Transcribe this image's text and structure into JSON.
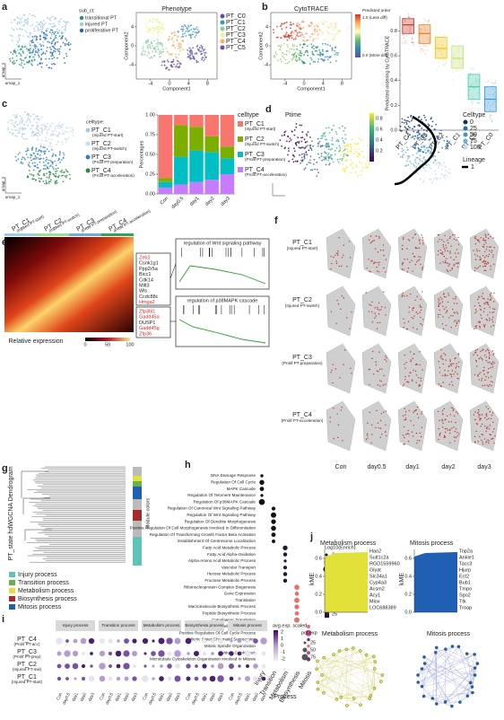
{
  "panels": [
    "a",
    "b",
    "c",
    "d",
    "e",
    "f",
    "g",
    "h",
    "i",
    "j"
  ],
  "a": {
    "umap": {
      "legend_title": "sub_ct:",
      "legend": [
        "transitional PT",
        "injured PT",
        "proliferative PT"
      ],
      "colors": [
        "#1f8f73",
        "#9ecae1",
        "#2166ac"
      ],
      "x_label": "umap_1",
      "y_label": "umap_2"
    },
    "phenotype": {
      "title": "Phenotype",
      "legend": [
        "PT_C0",
        "PT_C1",
        "PT_C2",
        "PT_C3",
        "PT_C4",
        "PT_C5"
      ],
      "colors": [
        "#5e4fa2",
        "#3f96b7",
        "#88cfa4",
        "#e6f598",
        "#fdae61",
        "#6a51a3"
      ],
      "x_label": "Component1",
      "y_label": "Component2",
      "xticks": [
        -4,
        0,
        4,
        8
      ],
      "yticks": [
        4,
        0,
        -4
      ]
    }
  },
  "b": {
    "cytotrace": {
      "title": "CytoTRACE",
      "colorbar_title": "Predicted order",
      "colorbar_top": "1.0 (Less diff)",
      "colorbar_bottom": "0.0 (More diff)",
      "x_label": "Component1",
      "y_label": "Component2",
      "xticks": [
        -4,
        0,
        4,
        8
      ],
      "yticks": [
        4,
        0,
        -4
      ]
    },
    "boxplot": {
      "y_label": "Predicted ordering by CytoTRACE",
      "categories": [
        "PT_C4",
        "PT_C3",
        "PT_C2",
        "PT_C1",
        "PT_C5",
        "PT_C0"
      ],
      "colors": [
        "#c0392b",
        "#e67e22",
        "#f1c40f",
        "#c5e17a",
        "#48c9b0",
        "#3498db"
      ],
      "q1": [
        0.78,
        0.7,
        0.58,
        0.5,
        0.25,
        0.15
      ],
      "median": [
        0.85,
        0.78,
        0.66,
        0.58,
        0.35,
        0.25
      ],
      "q3": [
        0.9,
        0.85,
        0.75,
        0.68,
        0.45,
        0.35
      ],
      "ylim": [
        0,
        0.92
      ],
      "yticks": [
        {
          "value": 0,
          "label": "0.0"
        },
        {
          "value": 0.2,
          "label": "0.2"
        },
        {
          "value": 0.4,
          "label": "0.4"
        },
        {
          "value": 0.6,
          "label": "0.6"
        },
        {
          "value": 0.8,
          "label": "0.8"
        }
      ]
    }
  },
  "c": {
    "umap": {
      "legend_title": "celltype:",
      "legend": [
        "PT_C1",
        "PT_C2",
        "PT_C3",
        "PT_C4"
      ],
      "legend_sub": [
        "(Injured PT-start)",
        "(Injured PT-switch)",
        "(Prolif PT-preparation)",
        "(Prolif PT-acceleration)"
      ],
      "colors": [
        "#a6cee3",
        "#c6dbef",
        "#3182bd",
        "#238b45"
      ],
      "x_label": "umap_1",
      "y_label": "umap_2"
    },
    "stacked": {
      "type": "bar",
      "y_label": "Percentages",
      "categories": [
        "Con",
        "day0.5",
        "day1",
        "day2",
        "day3"
      ],
      "legend_title": "celltype",
      "ylim": [
        0,
        1
      ],
      "yticks": [
        {
          "value": 0,
          "label": "0.00"
        },
        {
          "value": 0.25,
          "label": "0.25"
        },
        {
          "value": 0.5,
          "label": "0.50"
        },
        {
          "value": 0.75,
          "label": "0.75"
        },
        {
          "value": 1,
          "label": "1.00"
        }
      ],
      "series": [
        {
          "name": "PT_C4",
          "sub": "(Prolif PT-acceleration)",
          "color": "#c77cff",
          "values": [
            0.08,
            0.12,
            0.15,
            0.18,
            0.25
          ]
        },
        {
          "name": "PT_C3",
          "sub": "(Prolif PT-preparation)",
          "color": "#00bfc4",
          "values": [
            0.07,
            0.35,
            0.4,
            0.35,
            0.2
          ]
        },
        {
          "name": "PT_C2",
          "sub": "(Injured PT-switch)",
          "color": "#7cae00",
          "values": [
            0.05,
            0.4,
            0.3,
            0.2,
            0.15
          ]
        },
        {
          "name": "PT_C1",
          "sub": "(Injured PT-start)",
          "color": "#f8766d",
          "values": [
            0.8,
            0.13,
            0.15,
            0.27,
            0.4
          ]
        }
      ]
    }
  },
  "d": {
    "title": "Ptime",
    "colorbar_ticks": [
      {
        "value": 0.2,
        "label": "0.2"
      },
      {
        "value": 0.4,
        "label": "0.4"
      },
      {
        "value": 0.6,
        "label": "0.6"
      },
      {
        "value": 0.8,
        "label": "0.8"
      }
    ],
    "celltype_title": "Celltype",
    "celltype_legend": [
      0,
      25,
      50,
      75,
      100
    ],
    "lineage_title": "Lineage",
    "lineage_legend": [
      1
    ]
  },
  "e": {
    "columns": [
      "PT_C1",
      "PT_C2",
      "PT_C3",
      "PT_C4"
    ],
    "columns_sub": [
      "(Injured PT-start)",
      "(Injured PT-switch)",
      "(Prolif PT-preparation)",
      "(Prolif PT-acceleration)"
    ],
    "colors": [
      "#9ecae1",
      "#a1d99b",
      "#6baed6",
      "#31a354"
    ],
    "genes1": [
      {
        "name": "Zeb2",
        "red": true
      },
      {
        "name": "Csnk1g1",
        "red": false
      },
      {
        "name": "Ppp2r5a",
        "red": false
      },
      {
        "name": "Bicc1",
        "red": false
      },
      {
        "name": "Cdk14",
        "red": false
      },
      {
        "name": "Mllt3",
        "red": false
      },
      {
        "name": "Wls",
        "red": false
      },
      {
        "name": "Ccdc88c",
        "red": false
      },
      {
        "name": "Hmga2",
        "red": true
      }
    ],
    "genes2": [
      {
        "name": "Zfp36l1",
        "red": true
      },
      {
        "name": "Gadd45a",
        "red": true
      },
      {
        "name": "DUSP1",
        "red": false
      },
      {
        "name": "Gadd45g",
        "red": true
      },
      {
        "name": "Zfp36",
        "red": true
      }
    ],
    "gsea1": "regulation of Wnt signaling pathway",
    "gsea2": "regulation of p38MAPK cascade",
    "colorbar_title": "Relative expression",
    "colorbar_ticks": [
      0,
      50,
      100
    ]
  },
  "f": {
    "rows": [
      "PT_C1",
      "PT_C2",
      "PT_C3",
      "PT_C4"
    ],
    "rows_sub": [
      "(Injured PT-start)",
      "(Injured PT-switch)",
      "(Prolif PT-preparation)",
      "(Prolif PT-acceleration)"
    ],
    "columns": [
      "Con",
      "day0.5",
      "day1",
      "day2",
      "day3"
    ]
  },
  "g": {
    "y_label": "PT_state hdWGCNA Dendrogram",
    "module_label": "Module colors",
    "legend": [
      {
        "name": "Injury process",
        "color": "#5ec4b6"
      },
      {
        "name": "Transition process",
        "color": "#6ab04c"
      },
      {
        "name": "Metabolism process",
        "color": "#e1e13a"
      },
      {
        "name": "Biosynthesis process",
        "color": "#a52a2a"
      },
      {
        "name": "Mitosis process",
        "color": "#1f5fb4"
      }
    ]
  },
  "h": {
    "x_label": "Process",
    "size_title": "Log10(Enrich)",
    "size_legend": [
      2,
      3,
      4
    ],
    "color_title": "-Log10(P)",
    "color_legend": [
      25,
      50,
      75
    ],
    "columns": [
      {
        "label": "Injury",
        "color": "#111",
        "terms": [
          "DNA Damage Response",
          "Regulation Of Cell Cycle",
          "MAPK Cascade",
          "Regulation Of Telomere Maintenance",
          "Regulation Of p38MAPK Cascade"
        ]
      },
      {
        "label": "Transition",
        "color": "#111",
        "terms": [
          "Regulation Of Canonical Wnt Signaling Pathway",
          "Regulation Of Wnt Signaling Pathway",
          "Regulation Of Dendrite Morphogenesis",
          "Positive Regulation Of Cell Morphogenesis Involved In Differentiation",
          "Regulation Of Transforming Growth Factor Beta Activation",
          "Establishment Of Centrosome Localization"
        ]
      },
      {
        "label": "Metabolism",
        "color": "#1b1b2f",
        "terms": [
          "Fatty Acid Metabolic Process",
          "Fatty Acid Alpha-Oxidation",
          "Alpha-Amino Acid Metabolic Process",
          "Vascular Transport",
          "Hexose Metabolic Process",
          "Fructose Metabolic Process"
        ]
      },
      {
        "label": "Biosynthesis",
        "color": "#e8706a",
        "terms": [
          "Ribonucleoprotein Complex Biogenesis",
          "Gene Expression",
          "Translation",
          "Macromolecule Biosynthetic Process",
          "Peptide Biosynthetic Process",
          "Cytoplasmic Translation"
        ]
      },
      {
        "label": "Mitosis",
        "color": "#a03a7a",
        "terms": [
          "Regulation Of Cell Cycle Process",
          "Positive Regulation Of Cell Cycle Process",
          "Mitotic Sister Chromatid Segregation",
          "Mitotic Spindle Organization",
          "Mitotic Cytokinesis",
          "Microtubule Cytoskeleton Organization Involved In Mitosis"
        ]
      }
    ]
  },
  "i": {
    "rows": [
      "PT_C4",
      "PT_C3",
      "PT_C2",
      "PT_C1"
    ],
    "rows_sub": [
      "(Prolif PT-acc)",
      "(Prolif PT-prep)",
      "(Injured PT-swi)",
      "(Injured PT-start)"
    ],
    "groups": [
      "Injury process",
      "Transition process",
      "Metabolism process",
      "Biosynthesis process",
      "Mitosis process"
    ],
    "days": [
      "Con",
      "day0.5",
      "day1",
      "day2",
      "day3"
    ],
    "color_title": "avg.exp. scaled",
    "color_legend": [
      2,
      1,
      0,
      -1,
      -2
    ],
    "size_title": "pct.exp",
    "size_legend": [
      25,
      50,
      75
    ]
  },
  "j": {
    "y_label": "kME",
    "yticks": [
      {
        "value": 0,
        "label": "0.0"
      },
      {
        "value": 0.2,
        "label": "0.2"
      },
      {
        "value": 0.4,
        "label": "0.4"
      },
      {
        "value": 0.6,
        "label": "0.6"
      }
    ],
    "ylim": [
      0,
      0.7
    ],
    "metabolism": {
      "title": "Metabolism process",
      "color": "#e1e13a",
      "genes": [
        "Hao2",
        "Sult1c2a",
        "RGD1559960",
        "Glyat",
        "Slc34a1",
        "Cyp4a3",
        "Acsm2",
        "Acy1",
        "Miox",
        "LOC688389"
      ]
    },
    "mitosis": {
      "title": "Mitosis process",
      "color": "#1f5fb4",
      "genes": [
        "Top2a",
        "Ankle1",
        "Tacc3",
        "Hjurp",
        "Ect2",
        "Bub1",
        "Tmpo",
        "Sgo2",
        "Ttk",
        "Troap"
      ]
    },
    "network_titles": [
      "Metabolism process",
      "Mitosis process"
    ]
  }
}
